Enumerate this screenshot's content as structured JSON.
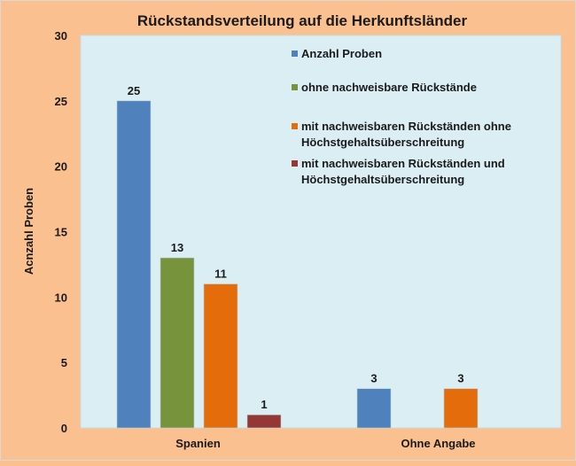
{
  "chart_data": {
    "type": "bar",
    "title": "Rückstandsverteilung auf die Herkunftsländer",
    "xlabel": "",
    "ylabel": "Acnzahl Proben",
    "ylim": [
      0,
      30
    ],
    "yticks": [
      0,
      5,
      10,
      15,
      20,
      25,
      30
    ],
    "grid": false,
    "legend_position": "top-right (inside plot)",
    "categories": [
      "Spanien",
      "Ohne Angabe"
    ],
    "series": [
      {
        "name": "Anzahl Proben",
        "color": "#4F81BD",
        "values": [
          25,
          3
        ]
      },
      {
        "name": "ohne nachweisbare Rückstände",
        "color": "#77933C",
        "values": [
          13,
          null
        ]
      },
      {
        "name": "mit nachweisbaren Rückständen ohne Höchstgehaltsüberschreitung",
        "legend_lines": [
          "mit nachweisbaren Rückständen ohne",
          "Höchstgehaltsüberschreitung"
        ],
        "color": "#E46C0A",
        "values": [
          11,
          3
        ]
      },
      {
        "name": "mit nachweisbaren Rückständen und Höchstgehaltsüberschreitung",
        "legend_lines": [
          "mit nachweisbaren Rückständen und",
          "Höchstgehaltsüberschreitung"
        ],
        "color": "#953735",
        "values": [
          1,
          null
        ]
      }
    ],
    "colors": {
      "background": "#FAC08F",
      "plot_area": "#DAEEF3"
    }
  }
}
